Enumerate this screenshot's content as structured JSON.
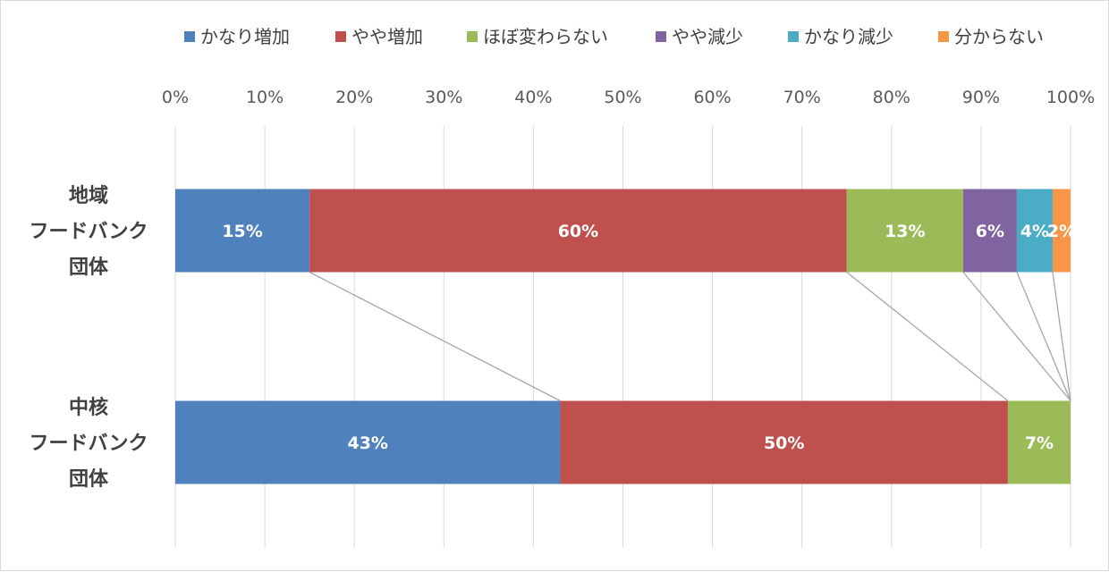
{
  "chart_data": {
    "type": "bar",
    "orientation": "horizontal",
    "stacked": "percent",
    "categories": [
      [
        "地域",
        "フードバンク",
        "団体"
      ],
      [
        "中核",
        "フードバンク",
        "団体"
      ]
    ],
    "series": [
      {
        "name": "かなり増加",
        "color": "#4f81bd",
        "values": [
          15,
          43
        ],
        "labels": [
          "15%",
          "43%"
        ]
      },
      {
        "name": "やや増加",
        "color": "#c0504d",
        "values": [
          60,
          50
        ],
        "labels": [
          "60%",
          "50%"
        ]
      },
      {
        "name": "ほぼ変わらない",
        "color": "#9bbb59",
        "values": [
          13,
          7
        ],
        "labels": [
          "13%",
          "7%"
        ]
      },
      {
        "name": "やや減少",
        "color": "#8064a2",
        "values": [
          6,
          0
        ],
        "labels": [
          "6%",
          ""
        ]
      },
      {
        "name": "かなり減少",
        "color": "#4bacc6",
        "values": [
          4,
          0
        ],
        "labels": [
          "4%",
          ""
        ]
      },
      {
        "name": "分からない",
        "color": "#f79646",
        "values": [
          2,
          0
        ],
        "labels": [
          "2%",
          ""
        ]
      }
    ],
    "xlim": [
      0,
      100
    ],
    "x_ticks": [
      "0%",
      "10%",
      "20%",
      "30%",
      "40%",
      "50%",
      "60%",
      "70%",
      "80%",
      "90%",
      "100%"
    ],
    "grid": true,
    "series_lines": true,
    "legend_position": "top"
  }
}
